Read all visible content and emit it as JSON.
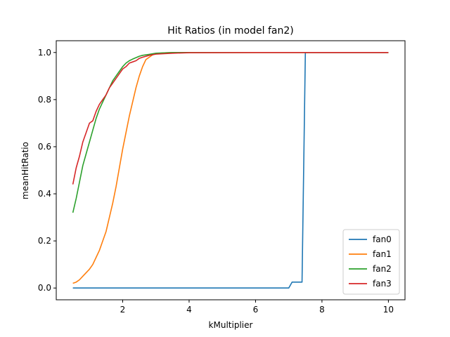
{
  "chart_data": {
    "type": "line",
    "title": "Hit Ratios (in model fan2)",
    "xlabel": "kMultiplier",
    "ylabel": "meanHitRatio",
    "xlim": [
      0.0,
      10.5
    ],
    "ylim": [
      -0.05,
      1.05
    ],
    "xticks": [
      2,
      4,
      6,
      8,
      10
    ],
    "yticks": [
      0.0,
      0.2,
      0.4,
      0.6,
      0.8,
      1.0
    ],
    "grid": false,
    "legend_position": "lower-right",
    "series": [
      {
        "name": "fan0",
        "color": "#1f77b4",
        "points": [
          [
            0.5,
            0.0
          ],
          [
            1.0,
            0.0
          ],
          [
            2.0,
            0.0
          ],
          [
            3.0,
            0.0
          ],
          [
            4.0,
            0.0
          ],
          [
            5.0,
            0.0
          ],
          [
            6.0,
            0.0
          ],
          [
            7.0,
            0.0
          ],
          [
            7.1,
            0.025
          ],
          [
            7.2,
            0.025
          ],
          [
            7.3,
            0.025
          ],
          [
            7.4,
            0.025
          ],
          [
            7.5,
            1.0
          ],
          [
            8.0,
            1.0
          ],
          [
            9.0,
            1.0
          ],
          [
            10.0,
            1.0
          ]
        ]
      },
      {
        "name": "fan1",
        "color": "#ff7f0e",
        "points": [
          [
            0.5,
            0.02
          ],
          [
            0.6,
            0.025
          ],
          [
            0.7,
            0.035
          ],
          [
            0.8,
            0.05
          ],
          [
            0.9,
            0.065
          ],
          [
            1.0,
            0.08
          ],
          [
            1.1,
            0.1
          ],
          [
            1.2,
            0.13
          ],
          [
            1.3,
            0.16
          ],
          [
            1.4,
            0.2
          ],
          [
            1.5,
            0.24
          ],
          [
            1.6,
            0.3
          ],
          [
            1.7,
            0.36
          ],
          [
            1.8,
            0.43
          ],
          [
            1.9,
            0.51
          ],
          [
            2.0,
            0.59
          ],
          [
            2.1,
            0.66
          ],
          [
            2.2,
            0.73
          ],
          [
            2.3,
            0.79
          ],
          [
            2.4,
            0.85
          ],
          [
            2.5,
            0.9
          ],
          [
            2.6,
            0.94
          ],
          [
            2.7,
            0.97
          ],
          [
            2.8,
            0.98
          ],
          [
            2.9,
            0.99
          ],
          [
            3.0,
            0.995
          ],
          [
            3.2,
            0.998
          ],
          [
            3.5,
            1.0
          ],
          [
            4.0,
            1.0
          ],
          [
            6.0,
            1.0
          ],
          [
            8.0,
            1.0
          ],
          [
            10.0,
            1.0
          ]
        ]
      },
      {
        "name": "fan2",
        "color": "#2ca02c",
        "points": [
          [
            0.5,
            0.32
          ],
          [
            0.6,
            0.38
          ],
          [
            0.7,
            0.45
          ],
          [
            0.8,
            0.52
          ],
          [
            0.9,
            0.57
          ],
          [
            1.0,
            0.62
          ],
          [
            1.1,
            0.67
          ],
          [
            1.2,
            0.72
          ],
          [
            1.3,
            0.76
          ],
          [
            1.4,
            0.79
          ],
          [
            1.5,
            0.82
          ],
          [
            1.6,
            0.85
          ],
          [
            1.7,
            0.88
          ],
          [
            1.8,
            0.9
          ],
          [
            1.9,
            0.92
          ],
          [
            2.0,
            0.94
          ],
          [
            2.1,
            0.955
          ],
          [
            2.2,
            0.965
          ],
          [
            2.3,
            0.972
          ],
          [
            2.4,
            0.978
          ],
          [
            2.5,
            0.984
          ],
          [
            2.6,
            0.988
          ],
          [
            2.8,
            0.992
          ],
          [
            3.0,
            0.997
          ],
          [
            3.5,
            1.0
          ],
          [
            4.0,
            1.0
          ],
          [
            6.0,
            1.0
          ],
          [
            8.0,
            1.0
          ],
          [
            10.0,
            1.0
          ]
        ]
      },
      {
        "name": "fan3",
        "color": "#d62728",
        "points": [
          [
            0.5,
            0.44
          ],
          [
            0.6,
            0.51
          ],
          [
            0.7,
            0.56
          ],
          [
            0.8,
            0.62
          ],
          [
            0.9,
            0.66
          ],
          [
            1.0,
            0.7
          ],
          [
            1.1,
            0.71
          ],
          [
            1.2,
            0.75
          ],
          [
            1.3,
            0.78
          ],
          [
            1.4,
            0.8
          ],
          [
            1.5,
            0.82
          ],
          [
            1.6,
            0.85
          ],
          [
            1.7,
            0.87
          ],
          [
            1.8,
            0.89
          ],
          [
            1.9,
            0.91
          ],
          [
            2.0,
            0.93
          ],
          [
            2.1,
            0.94
          ],
          [
            2.2,
            0.955
          ],
          [
            2.3,
            0.96
          ],
          [
            2.4,
            0.965
          ],
          [
            2.5,
            0.975
          ],
          [
            2.6,
            0.98
          ],
          [
            2.8,
            0.988
          ],
          [
            3.0,
            0.993
          ],
          [
            3.5,
            0.997
          ],
          [
            4.0,
            0.999
          ],
          [
            6.0,
            1.0
          ],
          [
            8.0,
            1.0
          ],
          [
            10.0,
            1.0
          ]
        ]
      }
    ]
  }
}
